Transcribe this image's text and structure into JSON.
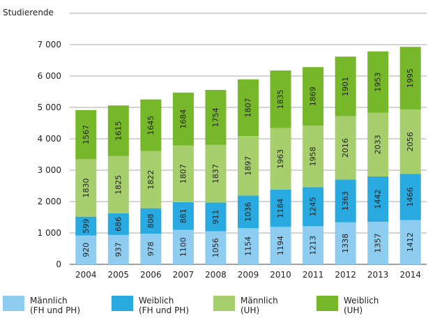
{
  "chart_data": {
    "type": "bar",
    "stacked": true,
    "ylabel": "Studierende",
    "ylim": [
      0,
      7500
    ],
    "yticks": [
      0,
      1000,
      2000,
      3000,
      4000,
      5000,
      6000,
      7000
    ],
    "ytick_labels": [
      "0",
      "1 000",
      "2 000",
      "3 000",
      "4 000",
      "5 000",
      "6 000",
      "7 000"
    ],
    "grid": true,
    "legend_position": "bottom",
    "categories": [
      "2004",
      "2005",
      "2006",
      "2007",
      "2008",
      "2009",
      "2010",
      "2011",
      "2012",
      "2013",
      "2014"
    ],
    "series": [
      {
        "name": "Männlich (FH und PH)",
        "values": [
          920,
          937,
          978,
          1100,
          1056,
          1154,
          1194,
          1213,
          1338,
          1357,
          1412
        ],
        "color": "#8ecdf0"
      },
      {
        "name": "Weiblich (FH und PH)",
        "values": [
          599,
          686,
          808,
          881,
          911,
          1036,
          1184,
          1245,
          1363,
          1442,
          1466
        ],
        "color": "#28a9df"
      },
      {
        "name": "Männlich (UH)",
        "values": [
          1830,
          1825,
          1822,
          1807,
          1837,
          1897,
          1963,
          1958,
          2016,
          2033,
          2056
        ],
        "color": "#a8cf6e"
      },
      {
        "name": "Weiblich (UH)",
        "values": [
          1567,
          1615,
          1645,
          1684,
          1754,
          1807,
          1835,
          1869,
          1901,
          1953,
          1995
        ],
        "color": "#77b82a"
      }
    ]
  },
  "legend": [
    {
      "line1": "Männlich",
      "line2": "(FH und PH)",
      "color": "#8ecdf0"
    },
    {
      "line1": "Weiblich",
      "line2": "(FH und PH)",
      "color": "#28a9df"
    },
    {
      "line1": "Männlich",
      "line2": "(UH)",
      "color": "#a8cf6e"
    },
    {
      "line1": "Weiblich",
      "line2": "(UH)",
      "color": "#77b82a"
    }
  ]
}
